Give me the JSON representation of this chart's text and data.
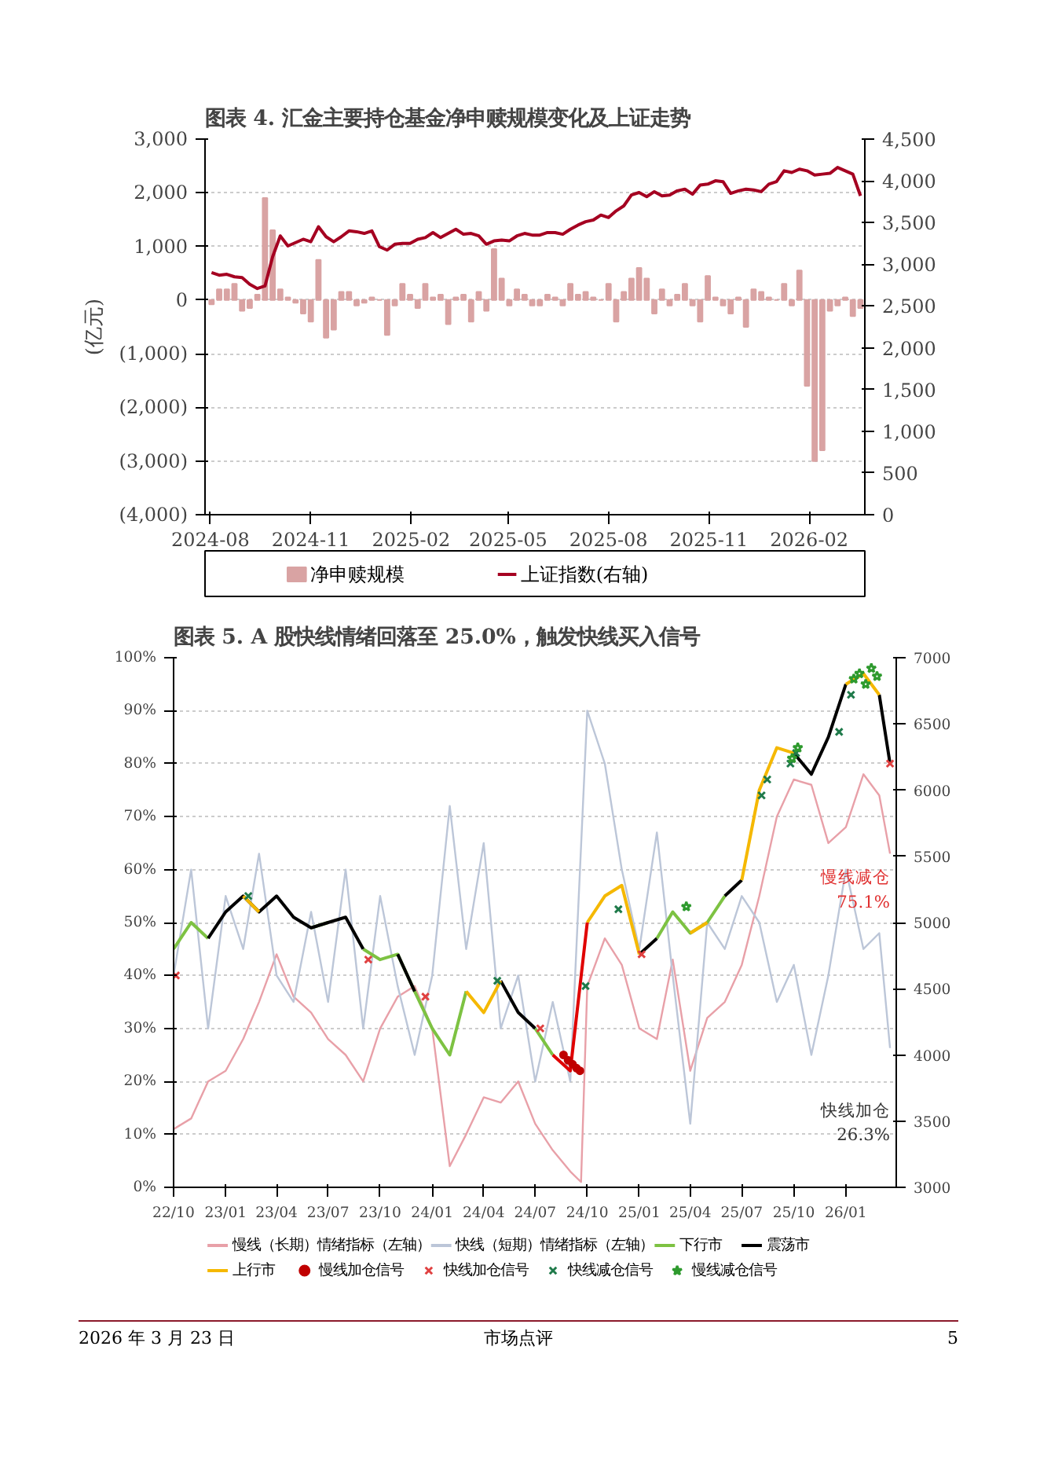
{
  "chart_data": [
    {
      "type": "bar",
      "title": "图表 4. 汇金主要持仓基金净申赎规模变化及上证走势",
      "ylabel": "(亿元)",
      "x": [
        "2024-08-02",
        "2024-08-09",
        "2024-08-16",
        "2024-08-23",
        "2024-08-30",
        "2024-09-06",
        "2024-09-13",
        "2024-09-20",
        "2024-09-27",
        "2024-10-04",
        "2024-10-11",
        "2024-10-18",
        "2024-10-25",
        "2024-11-01",
        "2024-11-08",
        "2024-11-15",
        "2024-11-22",
        "2024-11-29",
        "2024-12-06",
        "2024-12-13",
        "2024-12-20",
        "2024-12-27",
        "2025-01-03",
        "2025-01-10",
        "2025-01-17",
        "2025-01-24",
        "2025-01-31",
        "2025-02-07",
        "2025-02-14",
        "2025-02-21",
        "2025-02-28",
        "2025-03-07",
        "2025-03-14",
        "2025-03-21",
        "2025-03-28",
        "2025-04-04",
        "2025-04-11",
        "2025-04-18",
        "2025-04-25",
        "2025-05-02",
        "2025-05-09",
        "2025-05-16",
        "2025-05-23",
        "2025-05-30",
        "2025-06-06",
        "2025-06-13",
        "2025-06-20",
        "2025-06-27",
        "2025-07-04",
        "2025-07-11",
        "2025-07-18",
        "2025-07-25",
        "2025-08-01",
        "2025-08-08",
        "2025-08-15",
        "2025-08-22",
        "2025-08-29",
        "2025-09-05",
        "2025-09-12",
        "2025-09-19",
        "2025-09-26",
        "2025-10-03",
        "2025-10-10",
        "2025-10-17",
        "2025-10-24",
        "2025-10-31",
        "2025-11-07",
        "2025-11-14",
        "2025-11-21",
        "2025-11-28",
        "2025-12-05",
        "2025-12-12",
        "2025-12-19",
        "2025-12-26",
        "2026-01-02",
        "2026-01-09",
        "2026-01-16",
        "2026-01-23",
        "2026-01-30",
        "2026-02-06",
        "2026-02-13",
        "2026-02-20",
        "2026-02-27",
        "2026-03-06",
        "2026-03-13",
        "2026-03-20"
      ],
      "series": [
        {
          "name": "净申赎规模",
          "color": "#d9a3a3",
          "values": [
            -80,
            200,
            200,
            300,
            -200,
            -150,
            100,
            1900,
            1300,
            200,
            50,
            -50,
            -250,
            -400,
            750,
            -700,
            -550,
            150,
            150,
            -100,
            -50,
            50,
            0,
            -650,
            -100,
            300,
            100,
            -150,
            300,
            50,
            100,
            -450,
            50,
            100,
            -400,
            150,
            -200,
            950,
            400,
            -100,
            200,
            100,
            -100,
            -100,
            100,
            50,
            -100,
            300,
            100,
            150,
            50,
            0,
            300,
            -400,
            150,
            400,
            600,
            400,
            -250,
            200,
            -100,
            100,
            300,
            -100,
            -400,
            450,
            50,
            -100,
            -250,
            50,
            -500,
            200,
            150,
            50,
            0,
            300,
            -100,
            550,
            -1600,
            -3000,
            -2800,
            -200,
            -100,
            50,
            -300,
            -150
          ]
        },
        {
          "name": "上证指数(右轴)",
          "type": "line",
          "axis": "y2",
          "color": "#a50021",
          "values": [
            2900,
            2870,
            2880,
            2850,
            2840,
            2760,
            2710,
            2740,
            3090,
            3340,
            3220,
            3260,
            3300,
            3270,
            3450,
            3330,
            3270,
            3330,
            3400,
            3390,
            3370,
            3400,
            3210,
            3170,
            3240,
            3250,
            3250,
            3300,
            3320,
            3380,
            3320,
            3370,
            3420,
            3360,
            3370,
            3340,
            3240,
            3280,
            3290,
            3280,
            3340,
            3370,
            3350,
            3350,
            3380,
            3380,
            3360,
            3420,
            3470,
            3510,
            3530,
            3590,
            3560,
            3640,
            3700,
            3830,
            3860,
            3810,
            3870,
            3820,
            3830,
            3880,
            3900,
            3840,
            3950,
            3960,
            4000,
            3990,
            3850,
            3880,
            3900,
            3890,
            3870,
            3960,
            3990,
            4120,
            4100,
            4140,
            4120,
            4070,
            4080,
            4090,
            4160,
            4120,
            4080,
            3820
          ]
        }
      ],
      "xlim": [
        "2024-07-27",
        "2026-03-24"
      ],
      "xticks": [
        {
          "value": "2024-08",
          "label": "2024-08"
        },
        {
          "value": "2024-11",
          "label": "2024-11"
        },
        {
          "value": "2025-02",
          "label": "2025-02"
        },
        {
          "value": "2025-05",
          "label": "2025-05"
        },
        {
          "value": "2025-08",
          "label": "2025-08"
        },
        {
          "value": "2025-11",
          "label": "2025-11"
        },
        {
          "value": "2026-02",
          "label": "2026-02"
        }
      ],
      "ylim": [
        -4000,
        3000
      ],
      "yticks": [
        {
          "value": 3000,
          "label": "3,000"
        },
        {
          "value": 2000,
          "label": "2,000"
        },
        {
          "value": 1000,
          "label": "1,000"
        },
        0,
        {
          "value": -1000,
          "label": "(1,000)"
        },
        {
          "value": -2000,
          "label": "(2,000)"
        },
        {
          "value": -3000,
          "label": "(3,000)"
        },
        {
          "value": -4000,
          "label": "(4,000)"
        }
      ],
      "y2lim": [
        0,
        4500
      ],
      "y2ticks": [
        0,
        500,
        {
          "value": 1000,
          "label": "1,000"
        },
        {
          "value": 1500,
          "label": "1,500"
        },
        {
          "value": 2000,
          "label": "2,000"
        },
        {
          "value": 2500,
          "label": "2,500"
        },
        {
          "value": 3000,
          "label": "3,000"
        },
        {
          "value": 3500,
          "label": "3,500"
        },
        {
          "value": 4000,
          "label": "4,000"
        },
        {
          "value": 4500,
          "label": "4,500"
        }
      ],
      "grid": "y",
      "legend": "bottom"
    },
    {
      "type": "line",
      "title": "图表 5. A 股快线情绪回落至 25.0%，触发快线买入信号",
      "x": [
        "2022-10",
        "2022-11",
        "2022-12",
        "2023-01",
        "2023-02",
        "2023-03",
        "2023-04",
        "2023-05",
        "2023-06",
        "2023-07",
        "2023-08",
        "2023-09",
        "2023-10",
        "2023-11",
        "2023-12",
        "2024-01",
        "2024-02",
        "2024-03",
        "2024-04",
        "2024-05",
        "2024-06",
        "2024-07",
        "2024-08",
        "2024-09",
        "2024-10",
        "2024-11",
        "2024-12",
        "2025-01",
        "2025-02",
        "2025-03",
        "2025-04",
        "2025-05",
        "2025-06",
        "2025-07",
        "2025-08",
        "2025-09",
        "2025-10",
        "2025-11",
        "2025-12",
        "2026-01",
        "2026-02",
        "2026-03",
        "2026-03-20"
      ],
      "series": [
        {
          "name": "慢线（长期）情绪指标（左轴）",
          "color": "#e8a0a8",
          "x": [
            "2022-10",
            "2022-11",
            "2022-12",
            "2023-01",
            "2023-02",
            "2023-03",
            "2023-04",
            "2023-05",
            "2023-06",
            "2023-07",
            "2023-08",
            "2023-09",
            "2023-10",
            "2023-11",
            "2023-12",
            "2024-01",
            "2024-02",
            "2024-03",
            "2024-04",
            "2024-05",
            "2024-06",
            "2024-07",
            "2024-08",
            "2024-09",
            "2024-09-20",
            "2024-10",
            "2024-11",
            "2024-12",
            "2025-01",
            "2025-02",
            "2025-03",
            "2025-04",
            "2025-05",
            "2025-06",
            "2025-07",
            "2025-08",
            "2025-09",
            "2025-10",
            "2025-11",
            "2025-12",
            "2026-01",
            "2026-02",
            "2026-03",
            "2026-03-20"
          ],
          "values": [
            11,
            13,
            20,
            22,
            28,
            35,
            44,
            36,
            33,
            28,
            25,
            20,
            30,
            36,
            38,
            30,
            4,
            10,
            17,
            16,
            20,
            12,
            7,
            3,
            1,
            38,
            47,
            42,
            30,
            28,
            43,
            22,
            32,
            35,
            42,
            55,
            70,
            77,
            76,
            65,
            68,
            78,
            74,
            63
          ]
        },
        {
          "name": "快线（短期）情绪指标（左轴）",
          "color": "#bcc6d8",
          "values": [
            40,
            60,
            30,
            55,
            45,
            63,
            40,
            35,
            52,
            35,
            60,
            30,
            55,
            38,
            25,
            40,
            72,
            45,
            65,
            30,
            40,
            20,
            35,
            20,
            90,
            80,
            60,
            45,
            67,
            40,
            12,
            50,
            45,
            55,
            50,
            35,
            42,
            25,
            40,
            60,
            45,
            48,
            26.3
          ]
        },
        {
          "name": "下行市",
          "color": "#7dc242",
          "axis": "y2",
          "values": [
            4800,
            5000,
            4880,
            null,
            null,
            null,
            null,
            null,
            4960,
            5000,
            null,
            4800,
            4720,
            4760,
            4480,
            4200,
            4000,
            4480,
            null,
            null,
            null,
            4200,
            4000,
            null,
            null,
            null,
            null,
            null,
            4880,
            5080,
            4920,
            5000,
            5200,
            null,
            null,
            null,
            null,
            null,
            null,
            null,
            null,
            null,
            null
          ]
        },
        {
          "name": "震荡市",
          "color": "#000000",
          "axis": "y2",
          "values": [
            null,
            null,
            4880,
            5080,
            5200,
            5080,
            5200,
            5040,
            4960,
            5000,
            5040,
            4800,
            null,
            4760,
            4480,
            null,
            null,
            null,
            null,
            4560,
            4320,
            4200,
            null,
            null,
            null,
            null,
            null,
            4760,
            4880,
            null,
            null,
            null,
            5200,
            5320,
            null,
            null,
            6280,
            6120,
            6400,
            6800,
            null,
            6720,
            6200
          ]
        },
        {
          "name": "上行市",
          "color": "#f5b800",
          "axis": "y2",
          "values": [
            null,
            null,
            null,
            null,
            5200,
            5080,
            null,
            null,
            null,
            null,
            null,
            null,
            null,
            null,
            null,
            null,
            null,
            4480,
            4320,
            4560,
            null,
            null,
            null,
            null,
            5000,
            5200,
            5280,
            4760,
            null,
            null,
            4920,
            5000,
            null,
            5320,
            6000,
            6320,
            6280,
            null,
            null,
            6800,
            6880,
            6720,
            null
          ]
        },
        {
          "color": "#e00000",
          "axis": "y2",
          "values": [
            null,
            null,
            null,
            null,
            null,
            null,
            null,
            null,
            null,
            null,
            null,
            null,
            null,
            null,
            null,
            null,
            null,
            null,
            null,
            null,
            null,
            null,
            4000,
            3880,
            5000,
            null,
            null,
            null,
            null,
            null,
            null,
            null,
            null,
            null,
            null,
            null,
            null,
            null,
            null,
            null,
            null,
            null,
            null
          ]
        },
        {
          "name": "慢线加仓信号",
          "type": "scatter",
          "marker": "circle",
          "color": "#c00000",
          "axis": "y2",
          "x": [
            "2024-08-20",
            "2024-08-28",
            "2024-09-05",
            "2024-09-12",
            "2024-09-18"
          ],
          "values": [
            4000,
            3960,
            3930,
            3900,
            3880
          ]
        },
        {
          "name": "快线加仓信号",
          "type": "scatter",
          "marker": "x",
          "color": "#e04040",
          "axis": "y2",
          "x": [
            "2022-10-05",
            "2023-09-10",
            "2023-12-20",
            "2024-07-10",
            "2025-01-05",
            "2026-03-20"
          ],
          "values": [
            4600,
            4720,
            4440,
            4200,
            4760,
            6200
          ]
        },
        {
          "name": "快线减仓信号",
          "type": "scatter",
          "marker": "x",
          "color": "#1f7a4a",
          "axis": "y2",
          "x": [
            "2023-02-10",
            "2024-04-25",
            "2024-09-28",
            "2024-11-25",
            "2025-08-05",
            "2025-08-15",
            "2025-09-25",
            "2025-10-05",
            "2025-12-20",
            "2026-01-10"
          ],
          "values": [
            5200,
            4560,
            4520,
            5100,
            5960,
            6080,
            6200,
            6280,
            6440,
            6720
          ]
        },
        {
          "name": "慢线减仓信号",
          "type": "scatter",
          "marker": "star",
          "color": "#2e9a2e",
          "axis": "y2",
          "x": [
            "2025-03-25",
            "2025-09-28",
            "2025-10-08",
            "2026-01-15",
            "2026-01-25",
            "2026-02-05",
            "2026-02-15",
            "2026-02-25"
          ],
          "values": [
            5120,
            6240,
            6320,
            6840,
            6880,
            6800,
            6920,
            6860
          ]
        }
      ],
      "xlim": [
        "2022-10-01",
        "2026-03-31"
      ],
      "xticks": [
        {
          "value": "2022-10",
          "label": "22/10"
        },
        {
          "value": "2023-01",
          "label": "23/01"
        },
        {
          "value": "2023-04",
          "label": "23/04"
        },
        {
          "value": "2023-07",
          "label": "23/07"
        },
        {
          "value": "2023-10",
          "label": "23/10"
        },
        {
          "value": "2024-01",
          "label": "24/01"
        },
        {
          "value": "2024-04",
          "label": "24/04"
        },
        {
          "value": "2024-07",
          "label": "24/07"
        },
        {
          "value": "2024-10",
          "label": "24/10"
        },
        {
          "value": "2025-01",
          "label": "25/01"
        },
        {
          "value": "2025-04",
          "label": "25/04"
        },
        {
          "value": "2025-07",
          "label": "25/07"
        },
        {
          "value": "2025-10",
          "label": "25/10"
        },
        {
          "value": "2026-01",
          "label": "26/01"
        }
      ],
      "ylim": [
        0,
        100
      ],
      "yticks": [
        {
          "value": 0,
          "label": "0%"
        },
        {
          "value": 10,
          "label": "10%"
        },
        {
          "value": 20,
          "label": "20%"
        },
        {
          "value": 30,
          "label": "30%"
        },
        {
          "value": 40,
          "label": "40%"
        },
        {
          "value": 50,
          "label": "50%"
        },
        {
          "value": 60,
          "label": "60%"
        },
        {
          "value": 70,
          "label": "70%"
        },
        {
          "value": 80,
          "label": "80%"
        },
        {
          "value": 90,
          "label": "90%"
        },
        {
          "value": 100,
          "label": "100%"
        }
      ],
      "y2lim": [
        3000,
        7000
      ],
      "y2ticks": [
        3000,
        3500,
        4000,
        4500,
        5000,
        5500,
        6000,
        6500,
        7000
      ],
      "grid": "y",
      "legend": "bottom",
      "annotations": [
        "慢线减仓\n75.1%",
        "快线加仓\n26.3%",
        "2026 年 3 月 23 日",
        "市场点评",
        "5"
      ]
    }
  ]
}
